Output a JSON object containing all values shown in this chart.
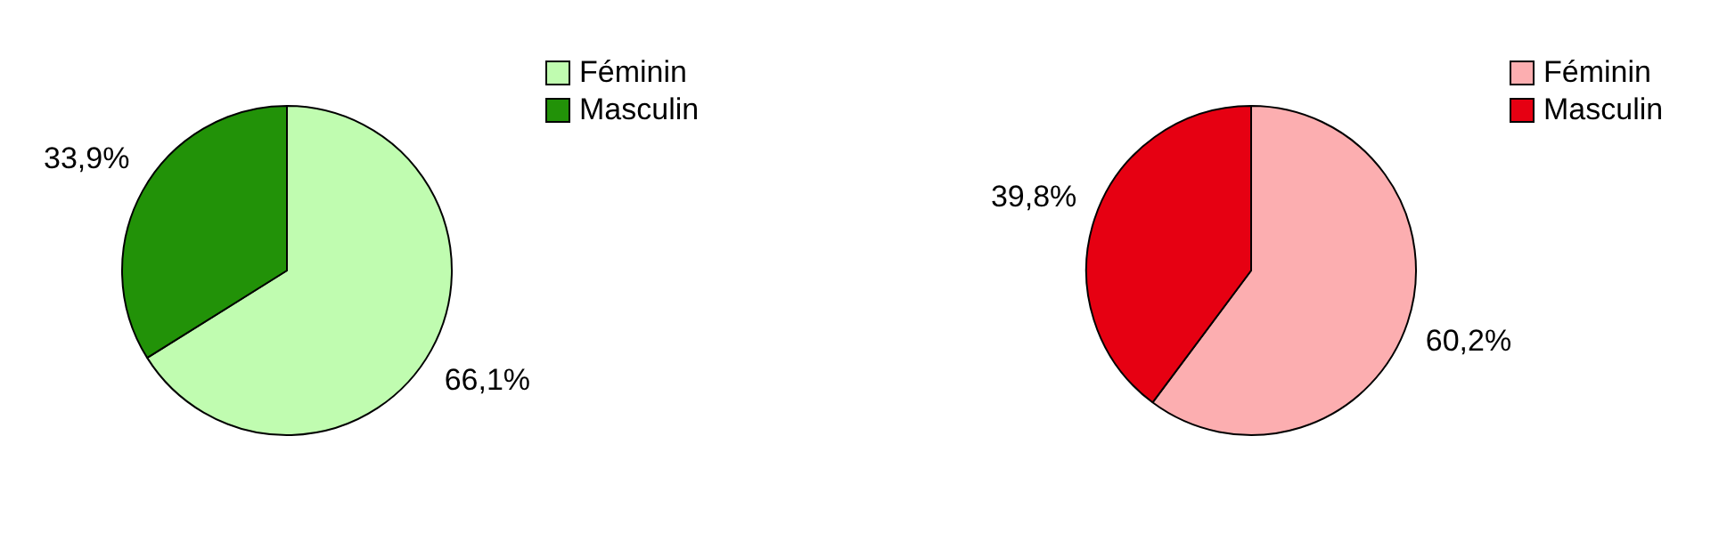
{
  "chart_data": [
    {
      "type": "pie",
      "categories": [
        "Féminin",
        "Masculin"
      ],
      "values": [
        66.1,
        33.9
      ],
      "colors": [
        "#c0fcb0",
        "#229208"
      ],
      "value_labels": [
        "66,1%",
        "33,9%"
      ],
      "legend": "top right"
    },
    {
      "type": "pie",
      "categories": [
        "Féminin",
        "Masculin"
      ],
      "values": [
        60.2,
        39.8
      ],
      "colors": [
        "#fcaeb0",
        "#e60012"
      ],
      "value_labels": [
        "60,2%",
        "39,8%"
      ],
      "legend": "top right"
    }
  ]
}
